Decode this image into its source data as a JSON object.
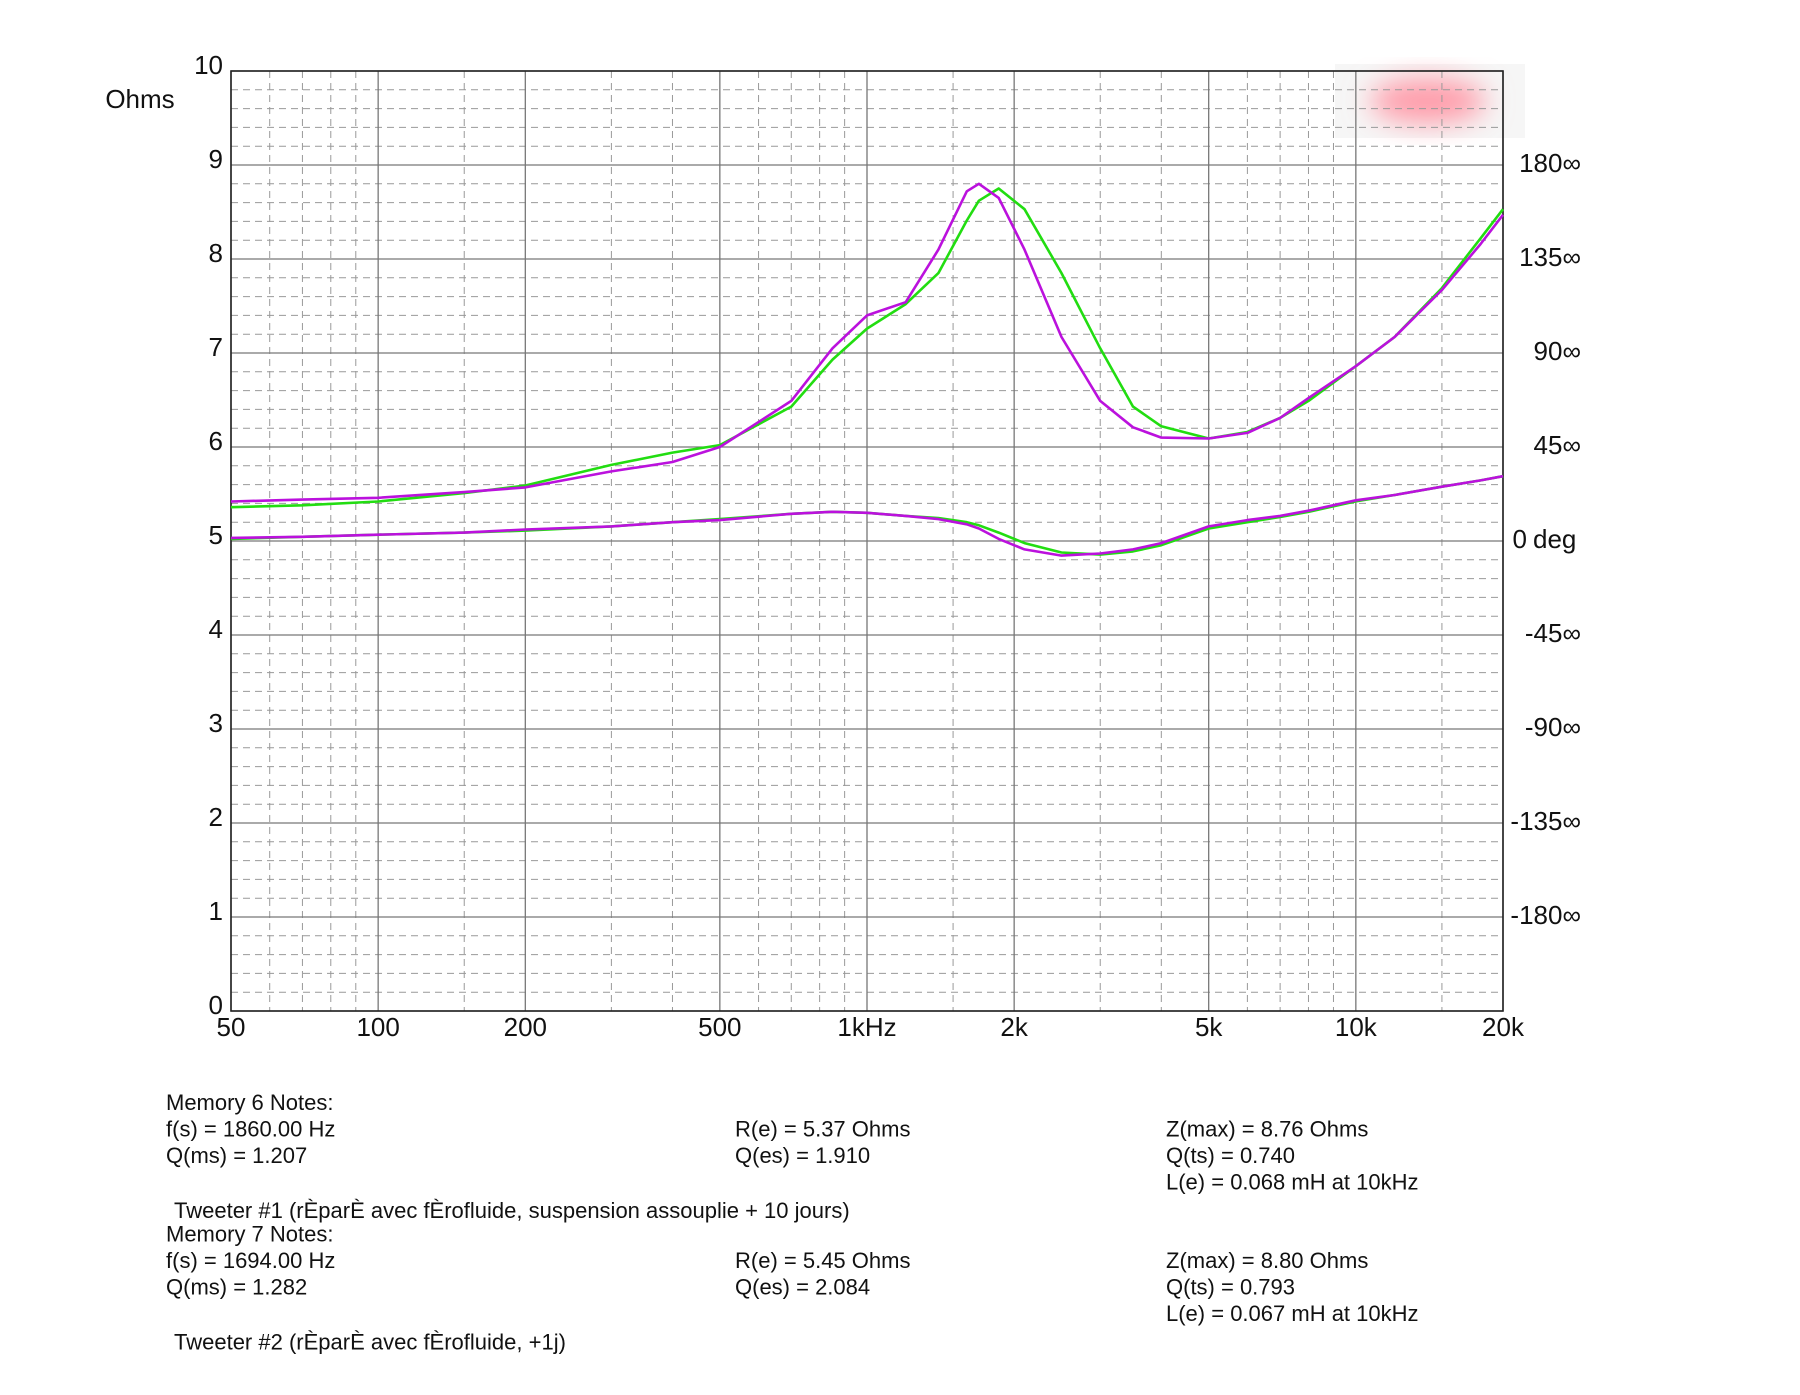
{
  "chart_data": {
    "type": "line",
    "xscale": "log",
    "ylabel": "Ohms",
    "ylabel_color": "#2233dd",
    "y2label": "deg",
    "y2label_color": "#ee2222",
    "grid": true,
    "x": [
      50,
      70,
      100,
      150,
      200,
      300,
      400,
      500,
      700,
      850,
      1000,
      1200,
      1400,
      1600,
      1694,
      1860,
      2100,
      2500,
      3000,
      3500,
      4000,
      5000,
      6000,
      7000,
      8000,
      10000,
      12000,
      15000,
      18000,
      20000
    ],
    "xlim": [
      50,
      20000
    ],
    "xticks": [
      50,
      100,
      200,
      500,
      {
        "value": 1000,
        "label": "1kHz"
      },
      {
        "value": 2000,
        "label": "2k"
      },
      {
        "value": 5000,
        "label": "5k"
      },
      {
        "value": 10000,
        "label": "10k"
      },
      {
        "value": 20000,
        "label": "20k"
      }
    ],
    "xminor": [
      60,
      70,
      80,
      90,
      150,
      300,
      400,
      600,
      700,
      800,
      900,
      1500,
      3000,
      4000,
      6000,
      7000,
      8000,
      9000,
      15000
    ],
    "ylim": [
      0,
      10
    ],
    "yticks": [
      0,
      1,
      2,
      3,
      4,
      5,
      6,
      7,
      8,
      9,
      10
    ],
    "yminor": [
      0.2,
      0.4,
      0.6,
      0.8,
      1.2,
      1.4,
      1.6,
      1.8,
      2.2,
      2.4,
      2.6,
      2.8,
      3.2,
      3.4,
      3.6,
      3.8,
      4.2,
      4.4,
      4.6,
      4.8,
      5.2,
      5.4,
      5.6,
      5.8,
      6.2,
      6.4,
      6.6,
      6.8,
      7.2,
      7.4,
      7.6,
      7.8,
      8.2,
      8.4,
      8.6,
      8.8,
      9.2,
      9.4,
      9.6,
      9.8
    ],
    "y2lim": [
      -225,
      225
    ],
    "y2ticks": [
      {
        "value": 180,
        "label": "180∞"
      },
      {
        "value": 135,
        "label": "135∞"
      },
      {
        "value": 90,
        "label": "90∞"
      },
      {
        "value": 45,
        "label": "45∞"
      },
      0,
      {
        "value": -45,
        "label": "-45∞"
      },
      {
        "value": -90,
        "label": "-90∞"
      },
      {
        "value": -135,
        "label": "-135∞"
      },
      {
        "value": -180,
        "label": "-180∞"
      }
    ],
    "series": [
      {
        "name": "Memory 6 Notes:",
        "color": "#22dd11",
        "values": [
          5.36,
          5.38,
          5.42,
          5.51,
          5.59,
          5.81,
          5.94,
          6.02,
          6.43,
          6.93,
          7.26,
          7.52,
          7.85,
          8.41,
          8.62,
          8.75,
          8.53,
          7.85,
          7.05,
          6.43,
          6.22,
          6.09,
          6.16,
          6.31,
          6.49,
          6.86,
          7.17,
          7.69,
          8.22,
          8.53
        ],
        "y2_values": [
          1,
          2,
          3,
          4,
          5,
          7,
          9,
          10.5,
          13,
          14,
          13.5,
          12,
          11,
          9,
          7.5,
          4,
          -1,
          -5.5,
          -6.5,
          -5,
          -2,
          6,
          9,
          11.5,
          14,
          19,
          22,
          26,
          29,
          31
        ],
        "notes": {
          "col1": [
            "f(s) = 1860.00 Hz",
            "Q(ms) = 1.207"
          ],
          "col2": [
            "R(e) = 5.37 Ohms",
            "Q(es) = 1.910"
          ],
          "col3": [
            "Z(max) = 8.76 Ohms",
            "Q(ts) = 0.740",
            "L(e) = 0.068 mH at 10kHz"
          ],
          "description": "Tweeter #1 (rÈparÈ avec fÈrofluide, suspension assouplie + 10 jours)"
        }
      },
      {
        "name": "Memory 7 Notes:",
        "color": "#bb11dd",
        "values": [
          5.42,
          5.44,
          5.46,
          5.52,
          5.57,
          5.74,
          5.84,
          6.0,
          6.49,
          7.05,
          7.4,
          7.54,
          8.1,
          8.72,
          8.8,
          8.65,
          8.1,
          7.17,
          6.49,
          6.21,
          6.1,
          6.09,
          6.15,
          6.31,
          6.52,
          6.86,
          7.17,
          7.67,
          8.16,
          8.47
        ],
        "y2_values": [
          1.5,
          2,
          3,
          4,
          5.5,
          7,
          9,
          10,
          13,
          14,
          13.5,
          12,
          10.5,
          8,
          6,
          1,
          -4,
          -7,
          -6,
          -4,
          -1,
          7,
          10,
          12,
          14.5,
          19.5,
          22,
          26,
          29,
          31
        ],
        "notes": {
          "col1": [
            "f(s) = 1694.00 Hz",
            "Q(ms) = 1.282"
          ],
          "col2": [
            "R(e) = 5.45 Ohms",
            "Q(es) = 2.084"
          ],
          "col3": [
            "Z(max) = 8.80 Ohms",
            "Q(ts) = 0.793",
            "L(e) = 0.067 mH at 10kHz"
          ],
          "description": "Tweeter #2 (rÈparÈ avec fÈrofluide, +1j)"
        }
      }
    ]
  }
}
